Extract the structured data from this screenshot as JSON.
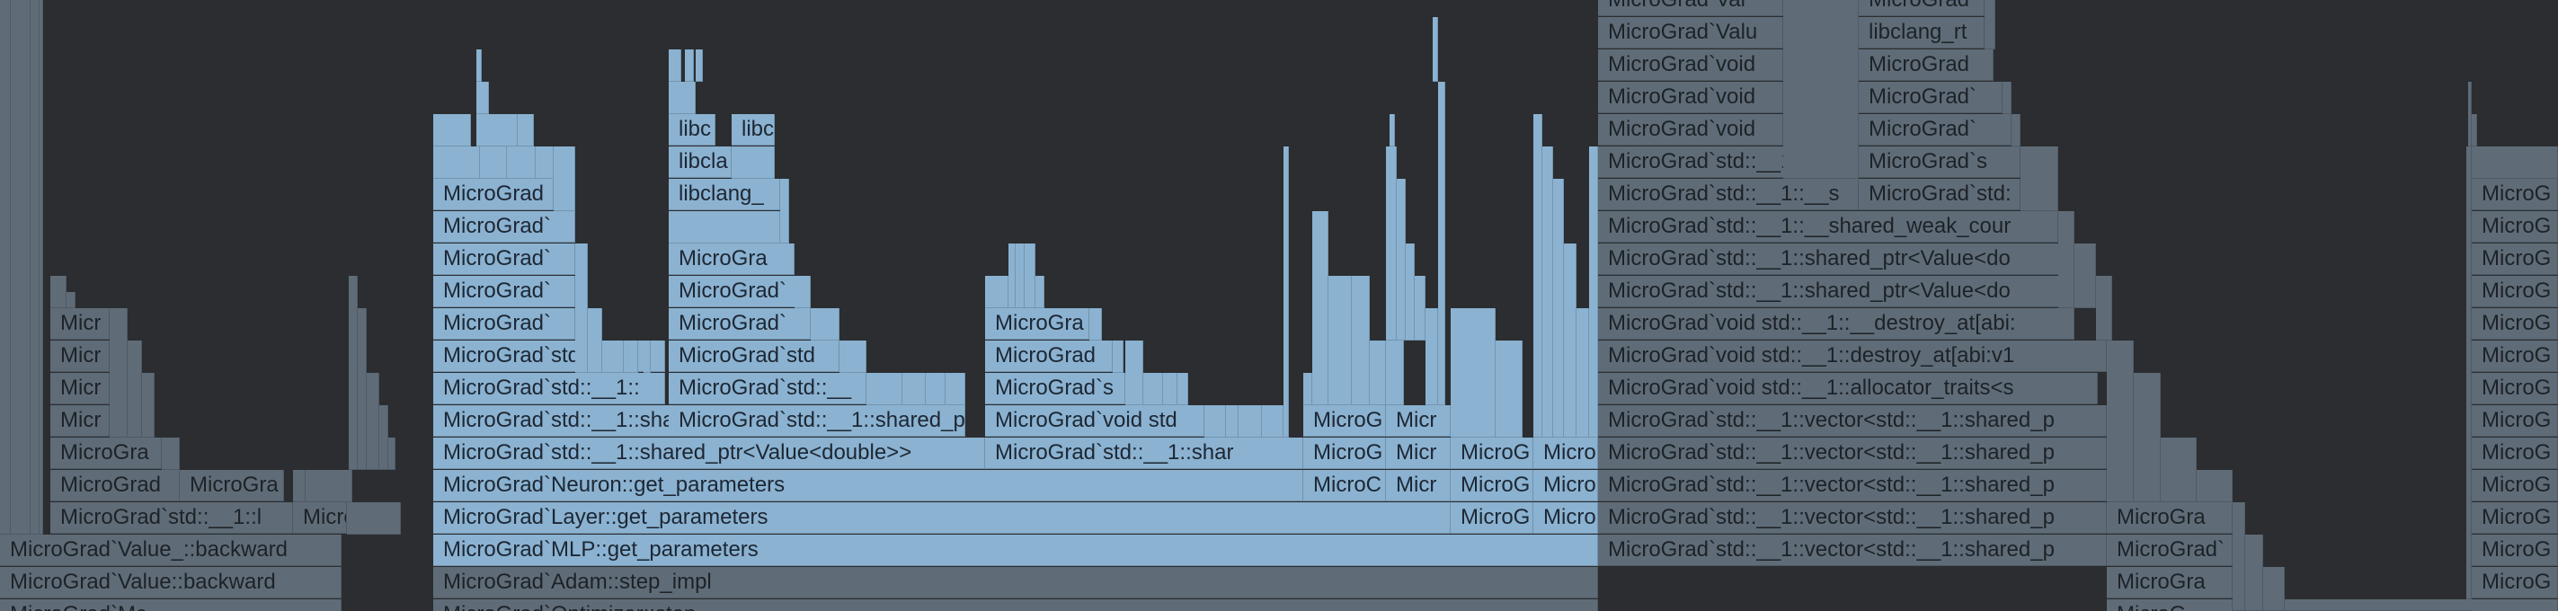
{
  "view": "flame-graph",
  "colors": {
    "background": "#2b2d30",
    "selected_frame": "#8bb2d1",
    "dimmed_frame": "#5f6c78",
    "text_on_selected": "#1d2733",
    "text_on_dimmed": "#1d2227"
  },
  "frames": [
    "MicroGrad`Value_::backward",
    "MicroGrad`Value::backward",
    "MicroGrad`Mc",
    "MicroGrad`std::__1::l",
    "Micro",
    "MicroGrad",
    "MicroGra",
    "MicroGra",
    "Micr",
    "Micr",
    "Micr",
    "Micr",
    "MicroGrad`MLP::get_parameters",
    "MicroGrad`Adam::step_impl",
    "MicroGrad`Optimizer::step",
    "MicroGrad`Layer::get_parameters",
    "MicroGrad`Neuron::get_parameters",
    "MicroGrad`std::__1::shared_ptr<Value<double>>",
    "MicroGrad`std::__1::shared_ptr<Value<double",
    "MicroGrad`std::__1::",
    "MicroGrad`std::__1::",
    "MicroGrad`",
    "MicroGrad`",
    "MicroGrad`",
    "MicroGrad`",
    "MicroGrad",
    "libclang_",
    "libcla",
    "libc",
    "libc",
    "MicroGrad`std::__1::shared_ptr<Value<double",
    "MicroGrad`std::__",
    "MicroGrad`std",
    "MicroGrad`",
    "MicroGrad`",
    "MicroGra",
    "libclang_",
    "libcla",
    "libc",
    "libc",
    "MicroGrad`std::__1::shar",
    "MicroGrad`void std",
    "MicroGrad`s",
    "MicroGrad",
    "MicroGra",
    "MicroG",
    "MicroG",
    "MicroC",
    "Micr",
    "Micr",
    "Micr",
    "MicroG",
    "MicroG",
    "MicroG",
    "Micro",
    "Micro",
    "Micro",
    "MicroGrad`std::__1::vector<std::__1::shared_p",
    "MicroGrad`std::__1::vector<std::__1::shared_p",
    "MicroGrad`std::__1::vector<std::__1::shared_p",
    "MicroGrad`std::__1::vector<std::__1::shared_p",
    "MicroGrad`std::__1::vector<std::__1::shared_p",
    "MicroGrad`void std::__1::allocator_traits<s",
    "MicroGrad`void std::__1::destroy_at[abi:v1",
    "MicroGrad`void std::__1::__destroy_at[abi:",
    "MicroGrad`std::__1::shared_ptr<Value<do",
    "MicroGrad`std::__1::shared_ptr<Value<do",
    "MicroGrad`std::__1::__shared_weak_cour",
    "MicroGrad`std::__1::__s",
    "MicroGrad`std::__1::_",
    "MicroGrad`void",
    "MicroGrad`void",
    "MicroGrad`void",
    "MicroGrad`Valu",
    "MicroGrad`Val",
    "MicroGrad`std:",
    "MicroGrad`s",
    "MicroGrad`",
    "MicroGrad`",
    "MicroGrad",
    "libclang_rt",
    "MicroGrad`",
    "MicroGra",
    "MicroGrad`",
    "MicroGra",
    "MicroG",
    "MicroG",
    "MicroG",
    "MicroG",
    "MicroG",
    "MicroG",
    "MicroG",
    "MicroG",
    "MicroG",
    "MicroG",
    "MicroG",
    "MicroG",
    "MicroG"
  ]
}
